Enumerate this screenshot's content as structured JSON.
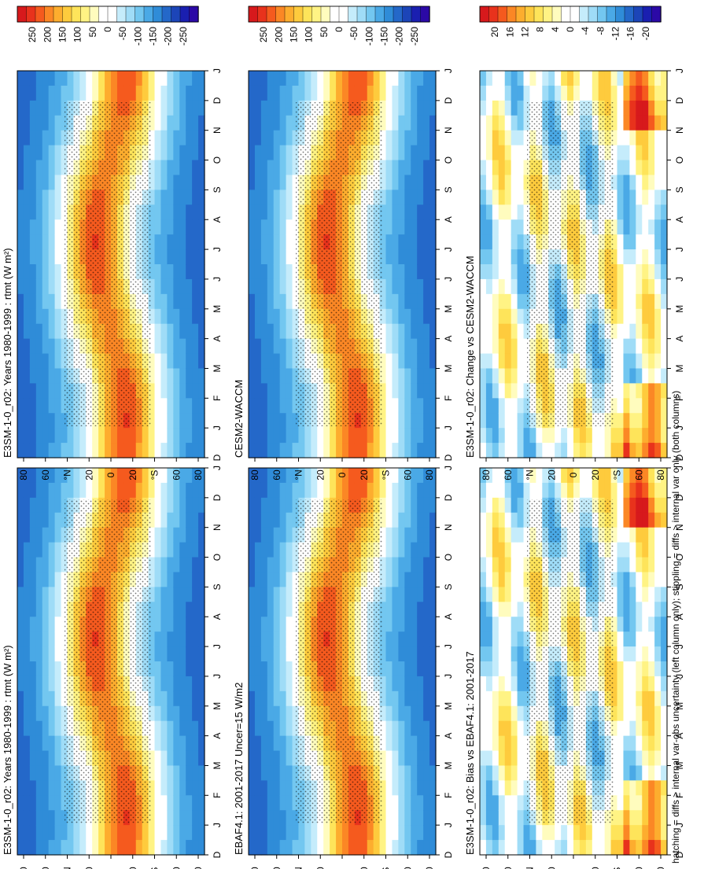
{
  "figure": {
    "footnote": "hatching = diffs > internal var-obs uncertainty (left column only); stippling = diffs > internal var only (both columns)"
  },
  "chart_data": [
    {
      "type": "heatmap",
      "id": "e3sm-left",
      "title": "E3SM-1-0_r02: Years 1980-1999 : rtmt (W m²)",
      "x": [
        "D",
        "J",
        "F",
        "M",
        "A",
        "M",
        "J",
        "J",
        "A",
        "S",
        "O",
        "N",
        "D",
        "J"
      ],
      "y_ticks": [
        "80",
        "60",
        "°N",
        "20",
        "0",
        "20",
        "°S",
        "60",
        "80"
      ],
      "colorbar": {
        "ticks": [
          "250",
          "200",
          "150",
          "100",
          "50",
          "0",
          "-50",
          "-100",
          "-150",
          "-200",
          "-250"
        ]
      },
      "stippling": true,
      "hatching": true
    },
    {
      "type": "heatmap",
      "id": "obs-left",
      "title": "EBAF4.1: 2001-2017 Uncer=15 W/m2",
      "x": [
        "D",
        "J",
        "F",
        "M",
        "A",
        "M",
        "J",
        "J",
        "A",
        "S",
        "O",
        "N",
        "D",
        "J"
      ],
      "y_ticks": [
        "80",
        "60",
        "°N",
        "20",
        "0",
        "20",
        "°S",
        "60",
        "80"
      ],
      "colorbar": {
        "ticks": [
          "250",
          "200",
          "150",
          "100",
          "50",
          "0",
          "-50",
          "-100",
          "-150",
          "-200",
          "-250"
        ]
      },
      "stippling": true,
      "hatching": true
    },
    {
      "type": "heatmap",
      "id": "bias-left",
      "title": "E3SM-1-0_r02: Bias vs EBAF4.1: 2001-2017",
      "x": [
        "D",
        "J",
        "F",
        "M",
        "A",
        "M",
        "J",
        "J",
        "A",
        "S",
        "O",
        "N",
        "D",
        "J"
      ],
      "y_ticks": [
        "80",
        "60",
        "°N",
        "20",
        "0",
        "20",
        "°S",
        "60",
        "80"
      ],
      "colorbar": {
        "ticks": [
          "20",
          "16",
          "12",
          "8",
          "4",
          "0",
          "-4",
          "-8",
          "-12",
          "-16",
          "-20"
        ]
      },
      "stippling": true,
      "hatching": true
    },
    {
      "type": "heatmap",
      "id": "e3sm-right",
      "title": "E3SM-1-0_r02: Years 1980-1999 : rtmt (W m²)",
      "x": [
        "D",
        "J",
        "F",
        "M",
        "A",
        "M",
        "J",
        "J",
        "A",
        "S",
        "O",
        "N",
        "D",
        "J"
      ],
      "y_ticks": [
        "80",
        "60",
        "°N",
        "20",
        "0",
        "20",
        "°S",
        "60",
        "80"
      ],
      "colorbar": {
        "ticks": [
          "250",
          "200",
          "150",
          "100",
          "50",
          "0",
          "-50",
          "-100",
          "-150",
          "-200",
          "-250"
        ]
      },
      "stippling": true,
      "hatching": false
    },
    {
      "type": "heatmap",
      "id": "cesm-right",
      "title": "CESM2-WACCM",
      "x": [
        "D",
        "J",
        "F",
        "M",
        "A",
        "M",
        "J",
        "J",
        "A",
        "S",
        "O",
        "N",
        "D",
        "J"
      ],
      "y_ticks": [
        "80",
        "60",
        "°N",
        "20",
        "0",
        "20",
        "°S",
        "60",
        "80"
      ],
      "colorbar": {
        "ticks": [
          "250",
          "200",
          "150",
          "100",
          "50",
          "0",
          "-50",
          "-100",
          "-150",
          "-200",
          "-250"
        ]
      },
      "stippling": true,
      "hatching": false
    },
    {
      "type": "heatmap",
      "id": "change-right",
      "title": "E3SM-1-0_r02: Change vs CESM2-WACCM",
      "x": [
        "D",
        "J",
        "F",
        "M",
        "A",
        "M",
        "J",
        "J",
        "A",
        "S",
        "O",
        "N",
        "D",
        "J"
      ],
      "y_ticks": [
        "80",
        "60",
        "°N",
        "20",
        "0",
        "20",
        "°S",
        "60",
        "80"
      ],
      "colorbar": {
        "ticks": [
          "20",
          "16",
          "12",
          "8",
          "4",
          "0",
          "-4",
          "-8",
          "-12",
          "-16",
          "-20"
        ]
      },
      "stippling": true,
      "hatching": false
    }
  ],
  "colors": {
    "palette": [
      "#d7191c",
      "#e8321c",
      "#f55a1e",
      "#fb8725",
      "#fdad2e",
      "#fecb3d",
      "#fee45a",
      "#fff384",
      "#fffcbe",
      "#ffffff",
      "#ffffff",
      "#c5ecfb",
      "#9fdcf7",
      "#73c7f0",
      "#4aa9e6",
      "#2f8cd8",
      "#2468c9",
      "#1c45b8",
      "#1a1fb0",
      "#2b09a6"
    ],
    "ink": "#000000"
  }
}
